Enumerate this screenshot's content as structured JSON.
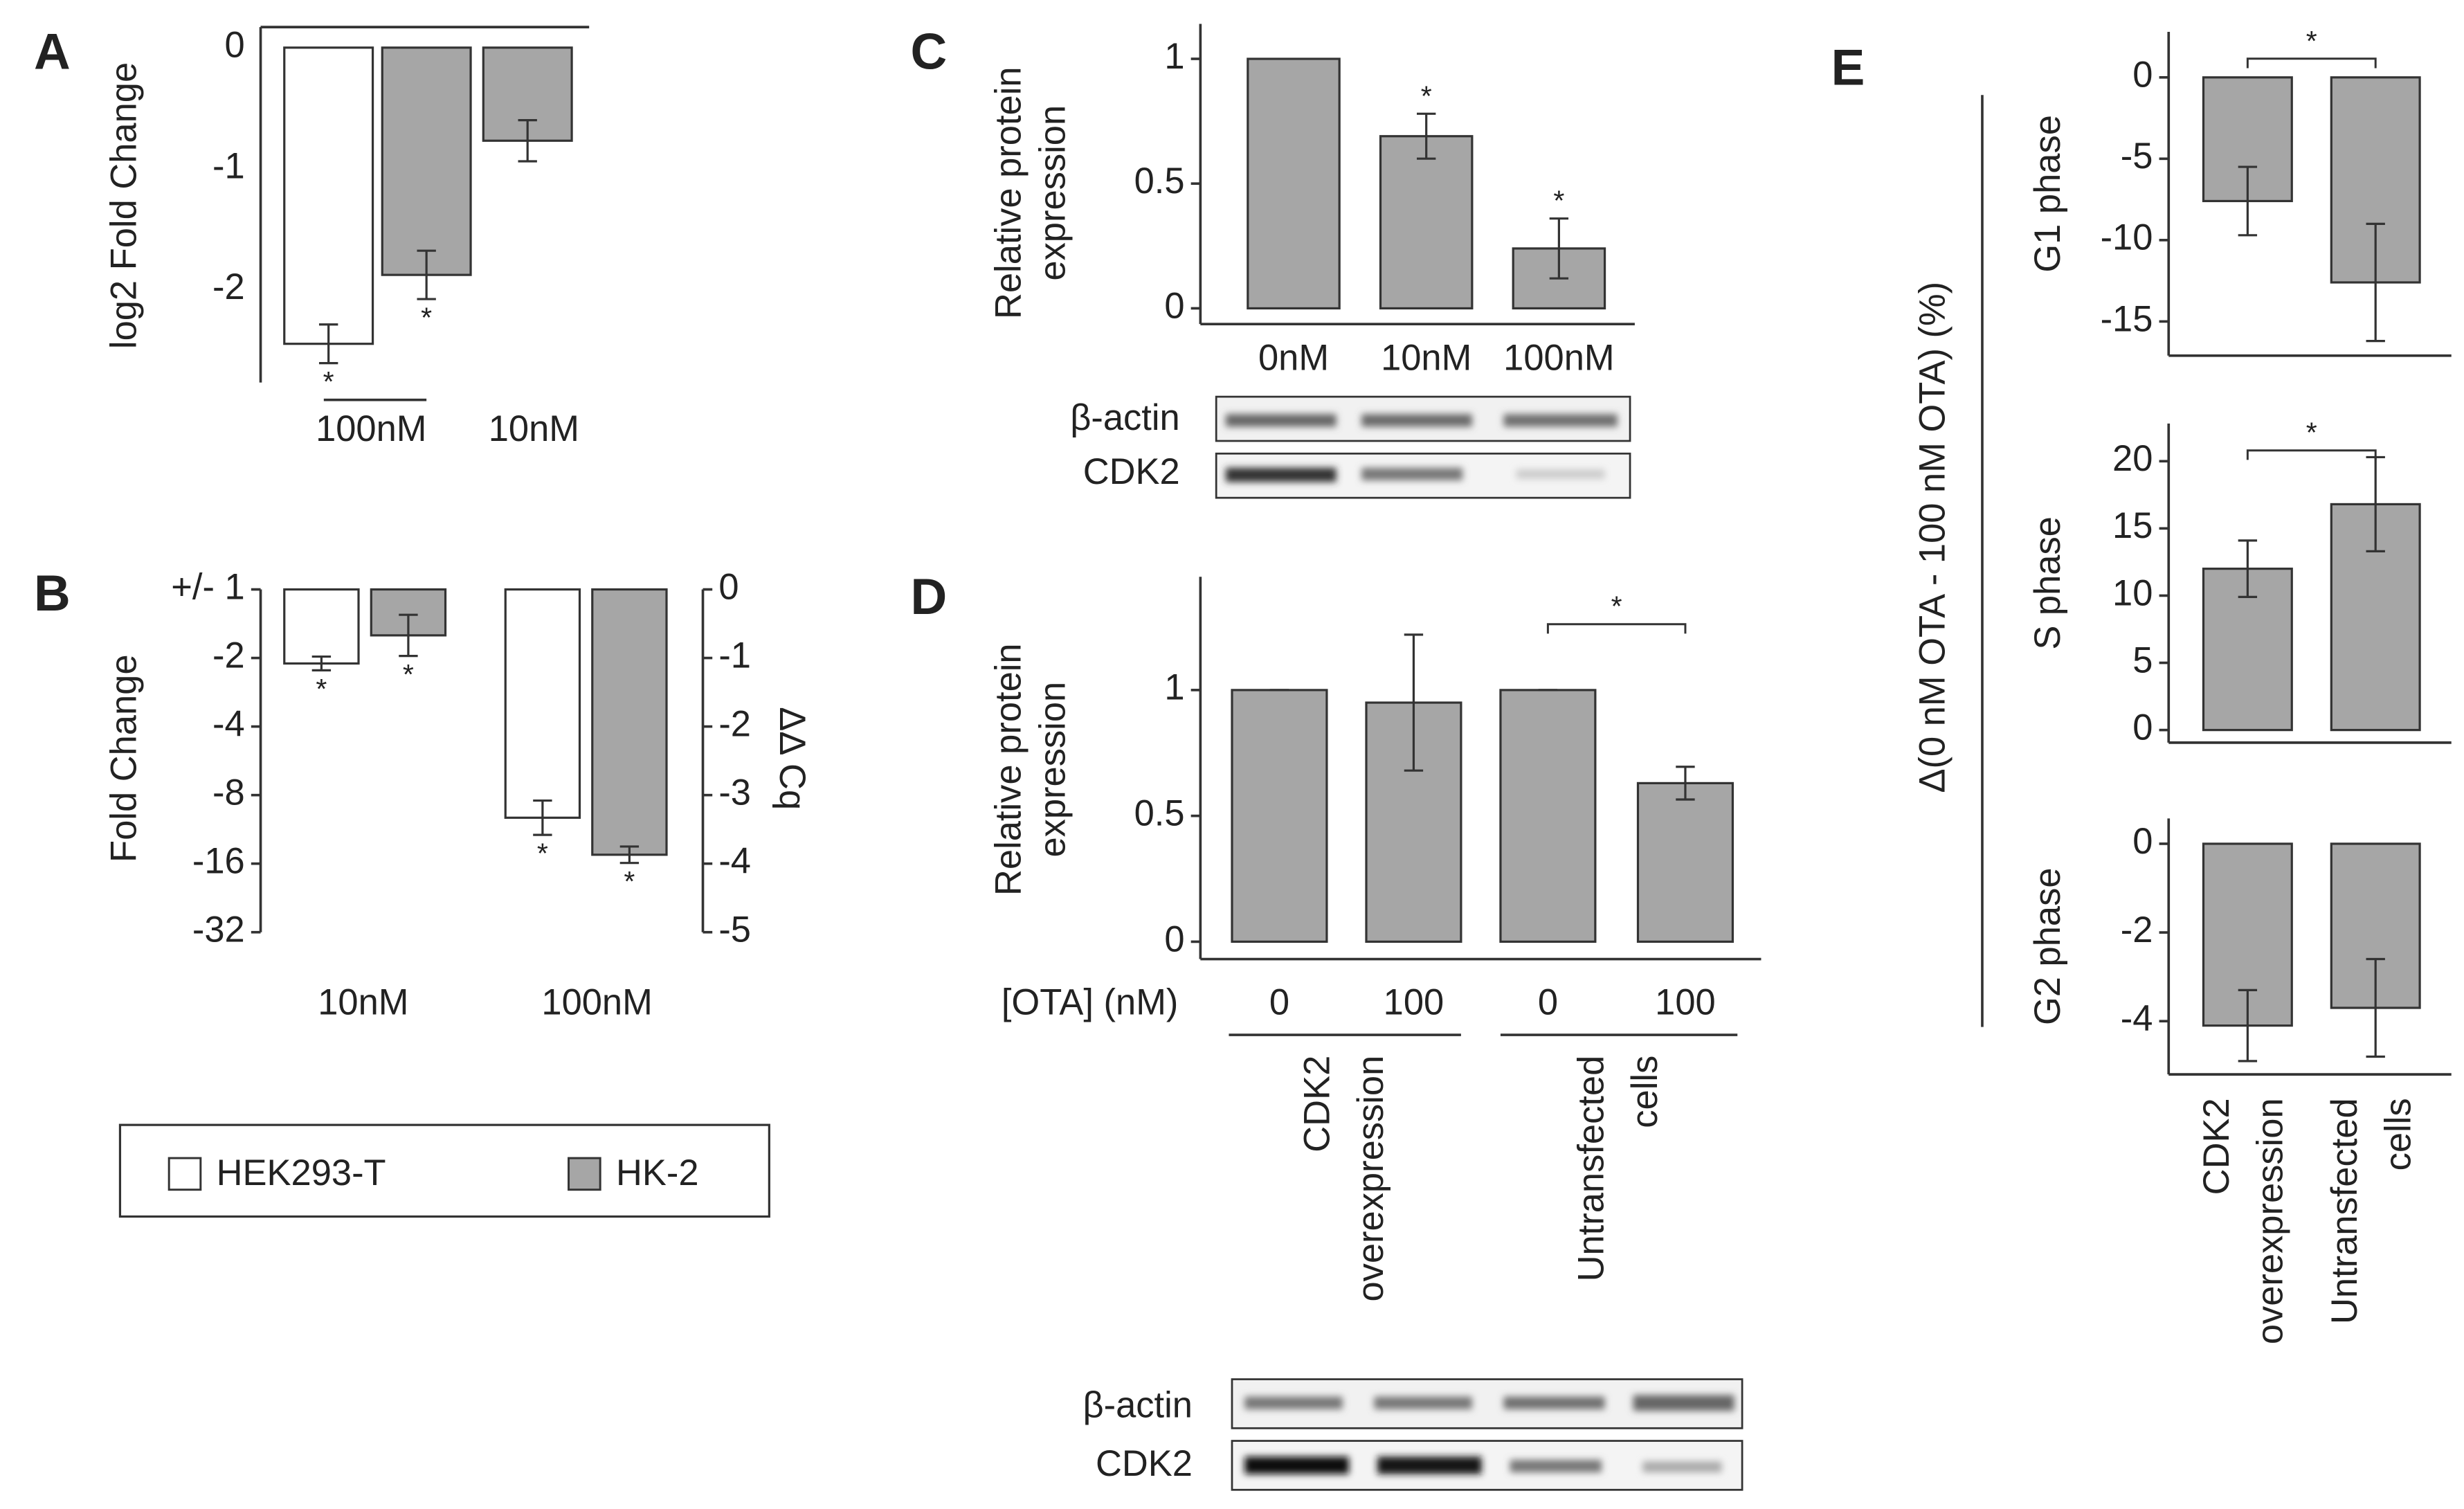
{
  "chart_data": [
    {
      "type": "bar",
      "label": "A",
      "ylabel": "log2 Fold Change",
      "categories": [
        "100nM",
        "10nM"
      ],
      "ylim": [
        -2.77,
        0.17
      ],
      "yticks": [
        0,
        -1,
        -2
      ],
      "series": [
        {
          "color": "#ffffff",
          "values": [
            -2.45,
            null
          ],
          "errors": [
            0.16,
            null
          ],
          "significance": [
            "*",
            null
          ]
        },
        {
          "color": "#a6a6a6",
          "values": [
            -1.88,
            -0.77
          ],
          "errors": [
            0.2,
            0.17
          ],
          "significance": [
            "*",
            null
          ]
        }
      ]
    },
    {
      "type": "bar",
      "label": "B",
      "ylabel": "Fold Change",
      "y2label": "ΔΔ Cq",
      "yscale": "signed-log2",
      "ylim": [
        -32,
        1
      ],
      "yticks": [
        {
          "value": 1,
          "label": "+/- 1"
        },
        -2,
        -4,
        -8,
        -16,
        -32
      ],
      "y2lim": [
        -5,
        0
      ],
      "y2ticks": [
        0,
        -1,
        -2,
        -3,
        -4,
        -5
      ],
      "categories": [
        "10nM",
        "100nM"
      ],
      "legend": "bottom",
      "series": [
        {
          "name": "HEK293-T",
          "color": "#ffffff",
          "axis": "y2",
          "values": [
            -1.08,
            -3.33
          ],
          "errors": [
            0.1,
            0.25
          ],
          "significance": [
            "*",
            "*"
          ]
        },
        {
          "name": "HK-2",
          "color": "#a6a6a6",
          "axis": "y2",
          "values": [
            -0.67,
            -3.87
          ],
          "errors": [
            0.3,
            0.12
          ],
          "significance": [
            "*",
            "*"
          ]
        }
      ]
    },
    {
      "type": "bar",
      "label": "C",
      "ylabel": [
        "Relative protein",
        "expression"
      ],
      "categories": [
        "0nM",
        "10nM",
        "100nM"
      ],
      "color": "#a6a6a6",
      "values": [
        1,
        0.69,
        0.24
      ],
      "errors": [
        null,
        0.09,
        0.12
      ],
      "significance": [
        null,
        "*",
        "*"
      ],
      "ylim": [
        -0.063,
        1.14
      ],
      "yticks": [
        0,
        0.5,
        1
      ],
      "blot_labels": [
        "β-actin",
        "CDK2"
      ]
    },
    {
      "type": "bar",
      "label": "D",
      "ylabel": [
        "Relative protein",
        "expression"
      ],
      "xlabel": "[OTA] (nM)",
      "categories": [
        "0",
        "100",
        "0",
        "100"
      ],
      "color": "#a6a6a6",
      "groups": [
        [
          "CDK2",
          "overexpression"
        ],
        [
          "Untransfected",
          "cells"
        ]
      ],
      "values": [
        1,
        0.95,
        1,
        0.63
      ],
      "errors": [
        0,
        0.27,
        0,
        0.065
      ],
      "comparison": "*",
      "ylim": [
        -0.069,
        1.45
      ],
      "yticks": [
        0,
        0.5,
        1
      ],
      "blot_labels": [
        "β-actin",
        "CDK2"
      ]
    },
    {
      "type": "bar",
      "label": "E",
      "ylabel": "Δ(0 nM OTA - 100 nM OTA) (%)",
      "color": "#a6a6a6",
      "categories": [
        [
          "CDK2",
          "overexpression"
        ],
        [
          "Untransfected",
          "cells"
        ]
      ],
      "facets": [
        {
          "ylabel": "G1 phase",
          "values": [
            -7.6,
            -12.6
          ],
          "errors": [
            2.1,
            3.6
          ],
          "comparison": "*",
          "ylim": [
            -17.1,
            2.8
          ],
          "yticks": [
            0,
            -5,
            -10,
            -15
          ]
        },
        {
          "ylabel": "S phase",
          "values": [
            12,
            16.8
          ],
          "errors": [
            2.1,
            3.5
          ],
          "comparison": "*",
          "ylim": [
            -0.94,
            22.8
          ],
          "yticks": [
            0,
            5,
            10,
            15,
            20
          ]
        },
        {
          "ylabel": "G2 phase",
          "values": [
            -4.1,
            -3.7
          ],
          "errors": [
            0.8,
            1.1
          ],
          "ylim": [
            -5.2,
            0.57
          ],
          "yticks": [
            0,
            -2,
            -4
          ]
        }
      ]
    }
  ]
}
